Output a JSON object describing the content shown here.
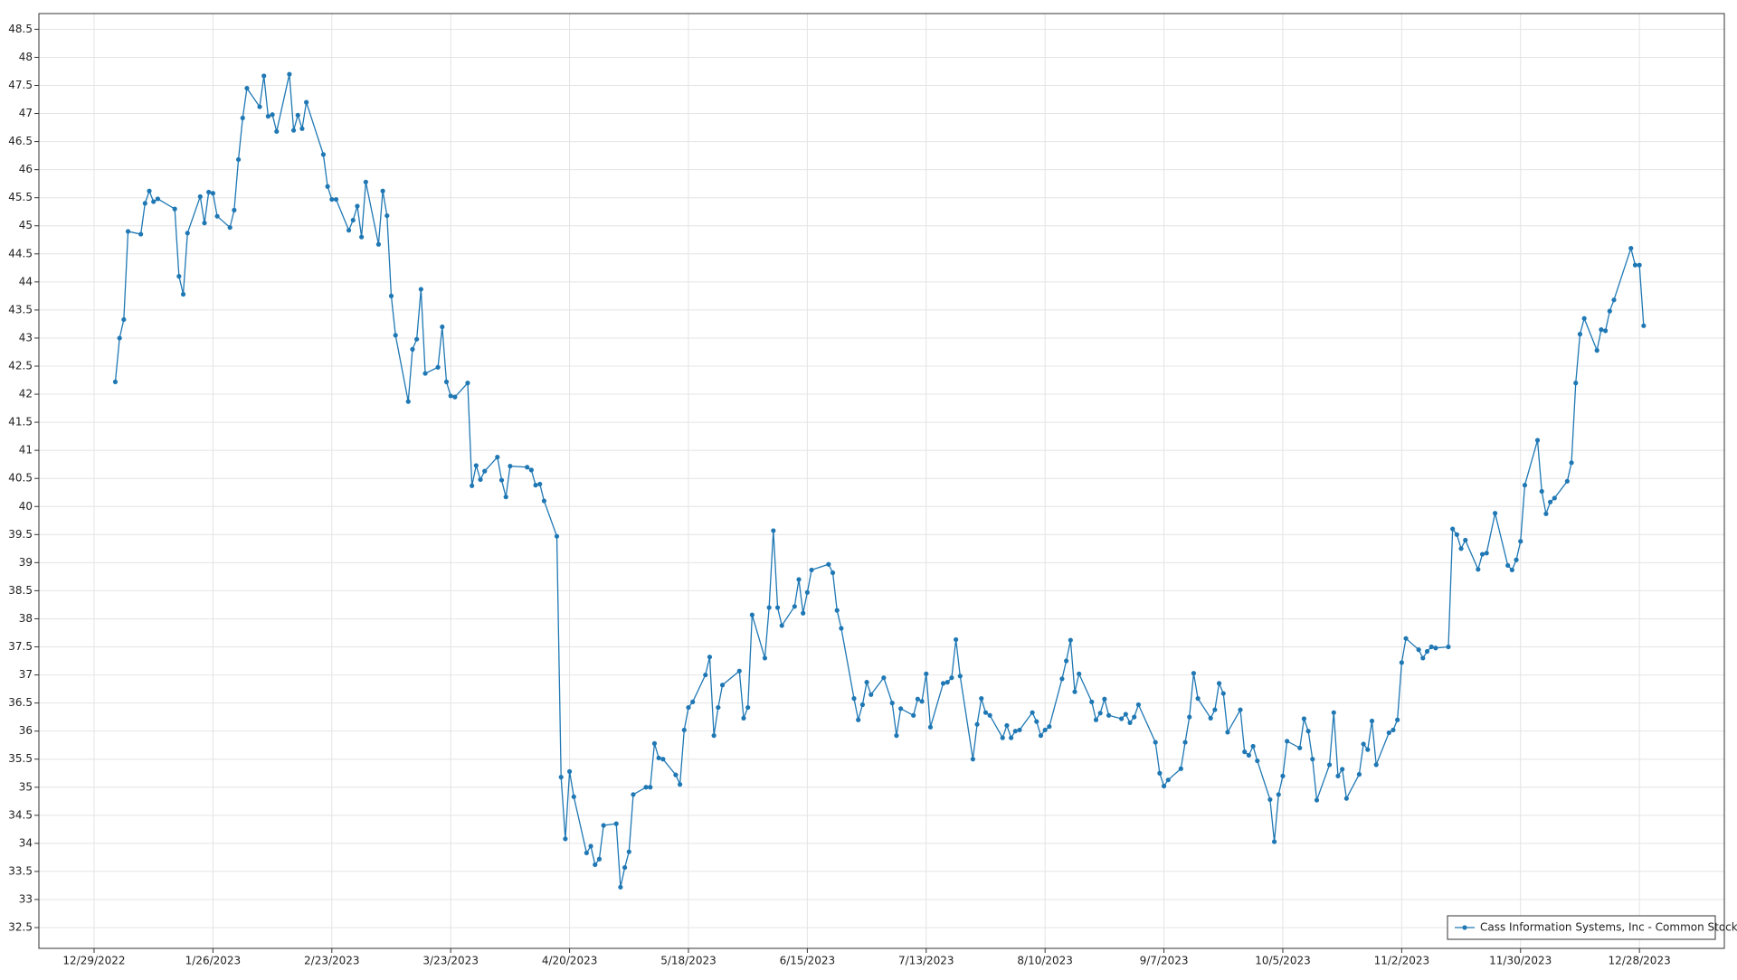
{
  "chart_data": {
    "type": "line",
    "x": [
      "1/3/2023",
      "1/4/2023",
      "1/5/2023",
      "1/6/2023",
      "1/9/2023",
      "1/10/2023",
      "1/11/2023",
      "1/12/2023",
      "1/13/2023",
      "1/17/2023",
      "1/18/2023",
      "1/19/2023",
      "1/20/2023",
      "1/23/2023",
      "1/24/2023",
      "1/25/2023",
      "1/26/2023",
      "1/27/2023",
      "1/30/2023",
      "1/31/2023",
      "2/1/2023",
      "2/2/2023",
      "2/3/2023",
      "2/6/2023",
      "2/7/2023",
      "2/8/2023",
      "2/9/2023",
      "2/10/2023",
      "2/13/2023",
      "2/14/2023",
      "2/15/2023",
      "2/16/2023",
      "2/17/2023",
      "2/21/2023",
      "2/22/2023",
      "2/23/2023",
      "2/24/2023",
      "2/27/2023",
      "2/28/2023",
      "3/1/2023",
      "3/2/2023",
      "3/3/2023",
      "3/6/2023",
      "3/7/2023",
      "3/8/2023",
      "3/9/2023",
      "3/10/2023",
      "3/13/2023",
      "3/14/2023",
      "3/15/2023",
      "3/16/2023",
      "3/17/2023",
      "3/20/2023",
      "3/21/2023",
      "3/22/2023",
      "3/23/2023",
      "3/24/2023",
      "3/27/2023",
      "3/28/2023",
      "3/29/2023",
      "3/30/2023",
      "3/31/2023",
      "4/3/2023",
      "4/4/2023",
      "4/5/2023",
      "4/6/2023",
      "4/10/2023",
      "4/11/2023",
      "4/12/2023",
      "4/13/2023",
      "4/14/2023",
      "4/17/2023",
      "4/18/2023",
      "4/19/2023",
      "4/20/2023",
      "4/21/2023",
      "4/24/2023",
      "4/25/2023",
      "4/26/2023",
      "4/27/2023",
      "4/28/2023",
      "5/1/2023",
      "5/2/2023",
      "5/3/2023",
      "5/4/2023",
      "5/5/2023",
      "5/8/2023",
      "5/9/2023",
      "5/10/2023",
      "5/11/2023",
      "5/12/2023",
      "5/15/2023",
      "5/16/2023",
      "5/17/2023",
      "5/18/2023",
      "5/19/2023",
      "5/22/2023",
      "5/23/2023",
      "5/24/2023",
      "5/25/2023",
      "5/26/2023",
      "5/30/2023",
      "5/31/2023",
      "6/1/2023",
      "6/2/2023",
      "6/5/2023",
      "6/6/2023",
      "6/7/2023",
      "6/8/2023",
      "6/9/2023",
      "6/12/2023",
      "6/13/2023",
      "6/14/2023",
      "6/15/2023",
      "6/16/2023",
      "6/20/2023",
      "6/21/2023",
      "6/22/2023",
      "6/23/2023",
      "6/26/2023",
      "6/27/2023",
      "6/28/2023",
      "6/29/2023",
      "6/30/2023",
      "7/3/2023",
      "7/5/2023",
      "7/6/2023",
      "7/7/2023",
      "7/10/2023",
      "7/11/2023",
      "7/12/2023",
      "7/13/2023",
      "7/14/2023",
      "7/17/2023",
      "7/18/2023",
      "7/19/2023",
      "7/20/2023",
      "7/21/2023",
      "7/24/2023",
      "7/25/2023",
      "7/26/2023",
      "7/27/2023",
      "7/28/2023",
      "7/31/2023",
      "8/1/2023",
      "8/2/2023",
      "8/3/2023",
      "8/4/2023",
      "8/7/2023",
      "8/8/2023",
      "8/9/2023",
      "8/10/2023",
      "8/11/2023",
      "8/14/2023",
      "8/15/2023",
      "8/16/2023",
      "8/17/2023",
      "8/18/2023",
      "8/21/2023",
      "8/22/2023",
      "8/23/2023",
      "8/24/2023",
      "8/25/2023",
      "8/28/2023",
      "8/29/2023",
      "8/30/2023",
      "8/31/2023",
      "9/1/2023",
      "9/5/2023",
      "9/6/2023",
      "9/7/2023",
      "9/8/2023",
      "9/11/2023",
      "9/12/2023",
      "9/13/2023",
      "9/14/2023",
      "9/15/2023",
      "9/18/2023",
      "9/19/2023",
      "9/20/2023",
      "9/21/2023",
      "9/22/2023",
      "9/25/2023",
      "9/26/2023",
      "9/27/2023",
      "9/28/2023",
      "9/29/2023",
      "10/2/2023",
      "10/3/2023",
      "10/4/2023",
      "10/5/2023",
      "10/6/2023",
      "10/9/2023",
      "10/10/2023",
      "10/11/2023",
      "10/12/2023",
      "10/13/2023",
      "10/16/2023",
      "10/17/2023",
      "10/18/2023",
      "10/19/2023",
      "10/20/2023",
      "10/23/2023",
      "10/24/2023",
      "10/25/2023",
      "10/26/2023",
      "10/27/2023",
      "10/30/2023",
      "10/31/2023",
      "11/1/2023",
      "11/2/2023",
      "11/3/2023",
      "11/6/2023",
      "11/7/2023",
      "11/8/2023",
      "11/9/2023",
      "11/10/2023",
      "11/13/2023",
      "11/14/2023",
      "11/15/2023",
      "11/16/2023",
      "11/17/2023",
      "11/20/2023",
      "11/21/2023",
      "11/22/2023",
      "11/24/2023",
      "11/27/2023",
      "11/28/2023",
      "11/29/2023",
      "11/30/2023",
      "12/1/2023",
      "12/4/2023",
      "12/5/2023",
      "12/6/2023",
      "12/7/2023",
      "12/8/2023",
      "12/11/2023",
      "12/12/2023",
      "12/13/2023",
      "12/14/2023",
      "12/15/2023",
      "12/18/2023",
      "12/19/2023",
      "12/20/2023",
      "12/21/2023",
      "12/22/2023",
      "12/26/2023",
      "12/27/2023",
      "12/28/2023",
      "12/29/2023"
    ],
    "series": [
      {
        "name": "Cass Information Systems, Inc - Common Stock",
        "color": "#1f78b4",
        "values": [
          42.22,
          43.0,
          43.33,
          44.9,
          44.85,
          45.4,
          45.62,
          45.43,
          45.48,
          45.3,
          44.1,
          43.78,
          44.87,
          45.52,
          45.05,
          45.6,
          45.58,
          45.17,
          44.97,
          45.28,
          46.18,
          46.92,
          47.45,
          47.12,
          47.67,
          46.95,
          46.98,
          46.68,
          47.7,
          46.7,
          46.97,
          46.73,
          47.2,
          46.27,
          45.7,
          45.47,
          45.47,
          44.92,
          45.1,
          45.35,
          44.8,
          45.78,
          44.67,
          45.62,
          45.18,
          43.75,
          43.05,
          41.87,
          42.8,
          42.98,
          43.87,
          42.37,
          42.48,
          43.2,
          42.22,
          41.97,
          41.95,
          42.2,
          40.37,
          40.73,
          40.48,
          40.63,
          40.88,
          40.47,
          40.17,
          40.72,
          40.7,
          40.65,
          40.38,
          40.4,
          40.1,
          39.47,
          35.18,
          34.08,
          35.28,
          34.83,
          33.83,
          33.95,
          33.62,
          33.72,
          34.32,
          34.35,
          33.22,
          33.57,
          33.85,
          34.87,
          35.0,
          35.0,
          35.78,
          35.52,
          35.5,
          35.22,
          35.05,
          36.02,
          36.42,
          36.52,
          37.0,
          37.32,
          35.92,
          36.42,
          36.82,
          37.07,
          36.23,
          36.42,
          38.07,
          37.3,
          38.2,
          39.57,
          38.2,
          37.88,
          38.22,
          38.7,
          38.1,
          38.47,
          38.87,
          38.97,
          38.82,
          38.15,
          37.83,
          36.58,
          36.2,
          36.47,
          36.87,
          36.65,
          36.95,
          36.5,
          35.92,
          36.4,
          36.28,
          36.57,
          36.53,
          37.02,
          36.07,
          36.85,
          36.87,
          36.95,
          37.63,
          36.98,
          35.5,
          36.12,
          36.58,
          36.33,
          36.28,
          35.88,
          36.1,
          35.88,
          36.0,
          36.02,
          36.33,
          36.17,
          35.92,
          36.02,
          36.08,
          36.93,
          37.25,
          37.62,
          36.7,
          37.02,
          36.52,
          36.2,
          36.32,
          36.57,
          36.28,
          36.22,
          36.3,
          36.15,
          36.25,
          36.47,
          35.8,
          35.25,
          35.02,
          35.13,
          35.33,
          35.8,
          36.25,
          37.03,
          36.58,
          36.23,
          36.38,
          36.85,
          36.67,
          35.98,
          36.38,
          35.63,
          35.57,
          35.73,
          35.47,
          34.78,
          34.03,
          34.87,
          35.2,
          35.82,
          35.7,
          36.22,
          36.0,
          35.5,
          34.77,
          35.4,
          36.33,
          35.2,
          35.32,
          34.8,
          35.23,
          35.77,
          35.67,
          36.18,
          35.4,
          35.97,
          36.02,
          36.2,
          37.22,
          37.65,
          37.45,
          37.3,
          37.42,
          37.5,
          37.48,
          37.5,
          39.6,
          39.5,
          39.25,
          39.4,
          38.88,
          39.15,
          39.17,
          39.88,
          38.95,
          38.87,
          39.05,
          39.38,
          40.38,
          41.18,
          40.27,
          39.87,
          40.08,
          40.15,
          40.45,
          40.78,
          42.2,
          43.07,
          43.35,
          42.78,
          43.15,
          43.13,
          43.48,
          43.68,
          44.6,
          44.3,
          44.3,
          43.22
        ]
      }
    ],
    "xlim": [
      "12/16/2022",
      "1/17/2024"
    ],
    "xticks": [
      "12/29/2022",
      "1/26/2023",
      "2/23/2023",
      "3/23/2023",
      "4/20/2023",
      "5/18/2023",
      "6/15/2023",
      "7/13/2023",
      "8/10/2023",
      "9/7/2023",
      "10/5/2023",
      "11/2/2023",
      "11/30/2023",
      "12/28/2023"
    ],
    "ylim": [
      32.13,
      48.78
    ],
    "yticks": [
      32.5,
      33,
      33.5,
      34,
      34.5,
      35,
      35.5,
      36,
      36.5,
      37,
      37.5,
      38,
      38.5,
      39,
      39.5,
      40,
      40.5,
      41,
      41.5,
      42,
      42.5,
      43,
      43.5,
      44,
      44.5,
      45,
      45.5,
      46,
      46.5,
      47,
      47.5,
      48,
      48.5
    ],
    "grid": true,
    "legend": "lower right"
  }
}
